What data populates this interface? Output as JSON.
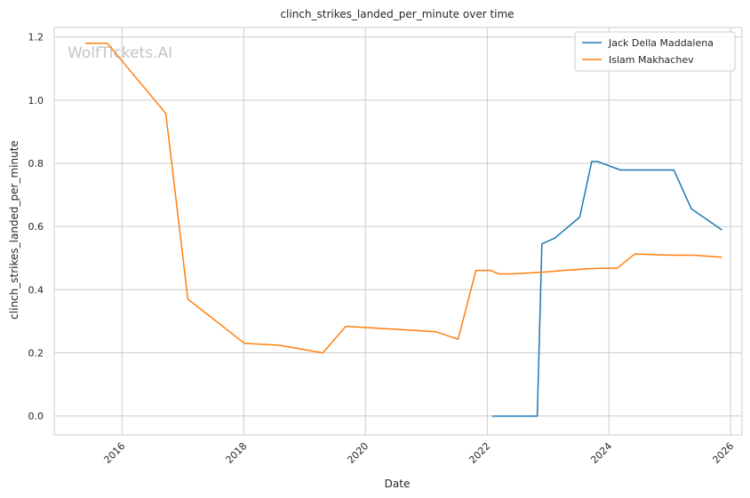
{
  "watermark": "WolfTickets.AI",
  "chart_data": {
    "type": "line",
    "title": "clinch_strikes_landed_per_minute over time",
    "xlabel": "Date",
    "ylabel": "clinch_strikes_landed_per_minute",
    "xlim": [
      "2014-11-20",
      "2026-03-10"
    ],
    "ylim": [
      -0.06,
      1.23
    ],
    "x_ticks": [
      "2016",
      "2018",
      "2020",
      "2022",
      "2024",
      "2026"
    ],
    "y_ticks": [
      "0.0",
      "0.2",
      "0.4",
      "0.6",
      "0.8",
      "1.0",
      "1.2"
    ],
    "grid": true,
    "legend_position": "top-right",
    "series": [
      {
        "name": "Jack Della Maddalena",
        "color": "#1f77b4",
        "points": [
          [
            "2022-01-30",
            0.0
          ],
          [
            "2022-10-28",
            0.0
          ],
          [
            "2022-11-25",
            0.545
          ],
          [
            "2023-02-10",
            0.563
          ],
          [
            "2023-07-10",
            0.63
          ],
          [
            "2023-09-20",
            0.806
          ],
          [
            "2023-10-25",
            0.806
          ],
          [
            "2024-03-10",
            0.779
          ],
          [
            "2025-01-25",
            0.779
          ],
          [
            "2025-05-10",
            0.656
          ],
          [
            "2025-11-10",
            0.589
          ]
        ]
      },
      {
        "name": "Islam Makhachev",
        "color": "#ff7f0e",
        "points": [
          [
            "2015-05-25",
            1.18
          ],
          [
            "2015-10-05",
            1.18
          ],
          [
            "2016-09-20",
            0.958
          ],
          [
            "2017-01-30",
            0.37
          ],
          [
            "2018-01-05",
            0.23
          ],
          [
            "2018-07-30",
            0.224
          ],
          [
            "2019-04-20",
            0.2
          ],
          [
            "2019-09-05",
            0.284
          ],
          [
            "2021-02-25",
            0.267
          ],
          [
            "2021-07-10",
            0.243
          ],
          [
            "2021-10-25",
            0.461
          ],
          [
            "2022-01-20",
            0.461
          ],
          [
            "2022-03-10",
            0.45
          ],
          [
            "2022-06-10",
            0.45
          ],
          [
            "2022-12-20",
            0.456
          ],
          [
            "2023-04-05",
            0.461
          ],
          [
            "2023-09-05",
            0.466
          ],
          [
            "2023-12-05",
            0.468
          ],
          [
            "2024-02-20",
            0.468
          ],
          [
            "2024-06-05",
            0.513
          ],
          [
            "2025-01-15",
            0.509
          ],
          [
            "2025-05-25",
            0.509
          ],
          [
            "2025-11-10",
            0.503
          ]
        ]
      }
    ]
  }
}
